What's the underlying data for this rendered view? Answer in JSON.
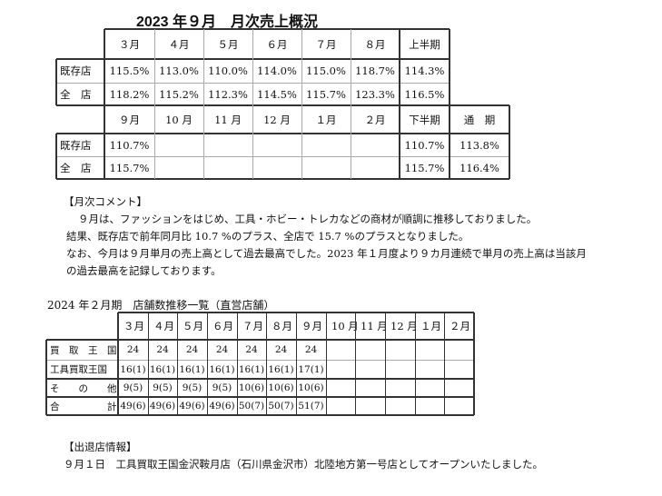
{
  "title": "2023 年９月　月次売上概況",
  "sales": {
    "first_half": {
      "headers": [
        "３月",
        "４月",
        "５月",
        "６月",
        "７月",
        "８月",
        "上半期"
      ],
      "rows": [
        {
          "label": "既存店",
          "values": [
            "115.5%",
            "113.0%",
            "110.0%",
            "114.0%",
            "115.0%",
            "118.7%",
            "114.3%"
          ]
        },
        {
          "label": "全　店",
          "values": [
            "118.2%",
            "115.2%",
            "112.3%",
            "114.5%",
            "115.7%",
            "123.3%",
            "116.5%"
          ]
        }
      ]
    },
    "second_half": {
      "headers": [
        "９月",
        "10 月",
        "11 月",
        "12 月",
        "１月",
        "２月",
        "下半期",
        "通　期"
      ],
      "rows": [
        {
          "label": "既存店",
          "values": [
            "110.7%",
            "",
            "",
            "",
            "",
            "",
            "110.7%",
            "113.8%"
          ]
        },
        {
          "label": "全　店",
          "values": [
            "115.7%",
            "",
            "",
            "",
            "",
            "",
            "115.7%",
            "116.4%"
          ]
        }
      ]
    }
  },
  "comment": {
    "heading": "【月次コメント】",
    "lines": [
      "９月は、ファッションをはじめ、工具・ホビー・トレカなどの商材が順調に推移しておりました。",
      "結果、既存店で前年同月比 10.7 %のプラス、全店で 15.7 %のプラスとなりました。",
      "なお、今月は９月単月の売上高として過去最高でした。2023 年１月度より９カ月連続で単月の売上高は当該月",
      "の過去最高を記録しております。"
    ]
  },
  "stores": {
    "title": "2024 年２月期　店舗数推移一覧（直営店舗）",
    "headers": [
      "３月",
      "４月",
      "５月",
      "６月",
      "７月",
      "８月",
      "９月",
      "10 月",
      "11 月",
      "12 月",
      "１月",
      "２月"
    ],
    "rows": [
      {
        "label": "買　取　王　国",
        "values": [
          "24",
          "24",
          "24",
          "24",
          "24",
          "24",
          "24",
          "",
          "",
          "",
          "",
          ""
        ]
      },
      {
        "label": "工具買取王国",
        "values": [
          "16(1)",
          "16(1)",
          "16(1)",
          "16(1)",
          "16(1)",
          "16(1)",
          "17(1)",
          "",
          "",
          "",
          "",
          ""
        ]
      },
      {
        "label": "そ　　の　　他",
        "values": [
          "9(5)",
          "9(5)",
          "9(5)",
          "9(5)",
          "10(6)",
          "10(6)",
          "10(6)",
          "",
          "",
          "",
          "",
          ""
        ]
      },
      {
        "label": "合　　　　　計",
        "values": [
          "49(6)",
          "49(6)",
          "49(6)",
          "49(6)",
          "50(7)",
          "50(7)",
          "51(7)",
          "",
          "",
          "",
          "",
          ""
        ]
      }
    ]
  },
  "openings": {
    "heading": "【出退店情報】",
    "lines": [
      "９月１日　工具買取王国金沢鞍月店（石川県金沢市）北陸地方第一号店としてオープンいたしました。"
    ]
  }
}
